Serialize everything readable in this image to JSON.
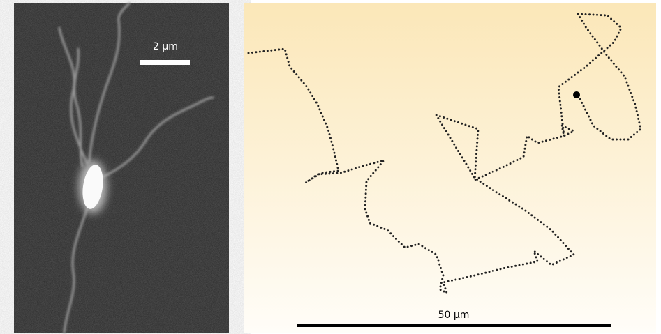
{
  "micrograph": {
    "scale_label": "2 µm"
  },
  "trajectory": {
    "scale_label": "50 µm"
  }
}
